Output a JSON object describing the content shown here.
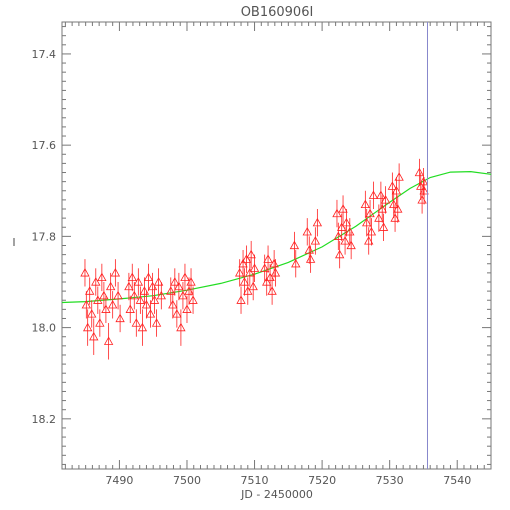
{
  "chart_data": {
    "type": "scatter",
    "title": "OB160906I",
    "xlabel": "JD - 2450000",
    "ylabel": "I",
    "xlim": [
      7481.5,
      7545.0
    ],
    "ylim": [
      18.31,
      17.33
    ],
    "y_inverted": true,
    "x_ticks": [
      7490,
      7500,
      7510,
      7520,
      7530,
      7540
    ],
    "x_tick_labels": [
      "7490",
      "7500",
      "7510",
      "7520",
      "7530",
      "7540"
    ],
    "y_ticks": [
      17.4,
      17.6,
      17.8,
      18.0,
      18.2
    ],
    "y_tick_labels": [
      "17.4",
      "17.6",
      "17.8",
      "18.0",
      "18.2"
    ],
    "grid": false,
    "vertical_marker_x": 7535.6,
    "colors": {
      "points": "#ff2020",
      "model": "#22dd22",
      "marker": "#8888cc",
      "axes": "#777777"
    },
    "series": [
      {
        "kind": "observations",
        "marker": "open-triangle",
        "points": [
          {
            "x": 7484.9,
            "y": 17.88,
            "err": 0.03
          },
          {
            "x": 7485.1,
            "y": 17.95,
            "err": 0.03
          },
          {
            "x": 7485.3,
            "y": 18.0,
            "err": 0.04
          },
          {
            "x": 7485.6,
            "y": 17.92,
            "err": 0.03
          },
          {
            "x": 7485.9,
            "y": 17.97,
            "err": 0.03
          },
          {
            "x": 7486.2,
            "y": 18.02,
            "err": 0.04
          },
          {
            "x": 7486.5,
            "y": 17.9,
            "err": 0.03
          },
          {
            "x": 7486.8,
            "y": 17.94,
            "err": 0.03
          },
          {
            "x": 7487.1,
            "y": 17.99,
            "err": 0.03
          },
          {
            "x": 7487.4,
            "y": 17.89,
            "err": 0.03
          },
          {
            "x": 7487.7,
            "y": 17.93,
            "err": 0.03
          },
          {
            "x": 7488.0,
            "y": 17.96,
            "err": 0.03
          },
          {
            "x": 7488.4,
            "y": 18.03,
            "err": 0.04
          },
          {
            "x": 7488.7,
            "y": 17.91,
            "err": 0.03
          },
          {
            "x": 7489.0,
            "y": 17.95,
            "err": 0.03
          },
          {
            "x": 7489.4,
            "y": 17.88,
            "err": 0.03
          },
          {
            "x": 7489.8,
            "y": 17.93,
            "err": 0.03
          },
          {
            "x": 7490.1,
            "y": 17.98,
            "err": 0.03
          },
          {
            "x": 7491.4,
            "y": 17.91,
            "err": 0.03
          },
          {
            "x": 7491.6,
            "y": 17.96,
            "err": 0.03
          },
          {
            "x": 7491.9,
            "y": 17.89,
            "err": 0.03
          },
          {
            "x": 7492.2,
            "y": 17.93,
            "err": 0.03
          },
          {
            "x": 7492.5,
            "y": 17.99,
            "err": 0.03
          },
          {
            "x": 7492.8,
            "y": 17.9,
            "err": 0.03
          },
          {
            "x": 7493.1,
            "y": 17.94,
            "err": 0.03
          },
          {
            "x": 7493.4,
            "y": 18.0,
            "err": 0.04
          },
          {
            "x": 7493.7,
            "y": 17.92,
            "err": 0.03
          },
          {
            "x": 7494.0,
            "y": 17.95,
            "err": 0.03
          },
          {
            "x": 7494.3,
            "y": 17.89,
            "err": 0.03
          },
          {
            "x": 7494.6,
            "y": 17.97,
            "err": 0.03
          },
          {
            "x": 7494.9,
            "y": 17.91,
            "err": 0.03
          },
          {
            "x": 7495.2,
            "y": 17.94,
            "err": 0.03
          },
          {
            "x": 7495.5,
            "y": 17.99,
            "err": 0.03
          },
          {
            "x": 7495.8,
            "y": 17.9,
            "err": 0.03
          },
          {
            "x": 7496.2,
            "y": 17.93,
            "err": 0.03
          },
          {
            "x": 7497.6,
            "y": 17.92,
            "err": 0.03
          },
          {
            "x": 7497.9,
            "y": 17.95,
            "err": 0.03
          },
          {
            "x": 7498.2,
            "y": 17.9,
            "err": 0.03
          },
          {
            "x": 7498.5,
            "y": 17.97,
            "err": 0.03
          },
          {
            "x": 7498.8,
            "y": 17.91,
            "err": 0.03
          },
          {
            "x": 7499.1,
            "y": 18.0,
            "err": 0.04
          },
          {
            "x": 7499.4,
            "y": 17.93,
            "err": 0.03
          },
          {
            "x": 7499.7,
            "y": 17.89,
            "err": 0.03
          },
          {
            "x": 7500.0,
            "y": 17.96,
            "err": 0.03
          },
          {
            "x": 7500.3,
            "y": 17.92,
            "err": 0.03
          },
          {
            "x": 7500.6,
            "y": 17.9,
            "err": 0.03
          },
          {
            "x": 7500.9,
            "y": 17.94,
            "err": 0.03
          },
          {
            "x": 7507.8,
            "y": 17.88,
            "err": 0.03
          },
          {
            "x": 7508.0,
            "y": 17.94,
            "err": 0.03
          },
          {
            "x": 7508.3,
            "y": 17.86,
            "err": 0.03
          },
          {
            "x": 7508.5,
            "y": 17.9,
            "err": 0.03
          },
          {
            "x": 7508.8,
            "y": 17.85,
            "err": 0.03
          },
          {
            "x": 7509.0,
            "y": 17.92,
            "err": 0.03
          },
          {
            "x": 7509.3,
            "y": 17.88,
            "err": 0.03
          },
          {
            "x": 7509.5,
            "y": 17.84,
            "err": 0.03
          },
          {
            "x": 7509.8,
            "y": 17.91,
            "err": 0.03
          },
          {
            "x": 7510.0,
            "y": 17.87,
            "err": 0.03
          },
          {
            "x": 7511.5,
            "y": 17.87,
            "err": 0.03
          },
          {
            "x": 7511.8,
            "y": 17.9,
            "err": 0.03
          },
          {
            "x": 7512.0,
            "y": 17.85,
            "err": 0.03
          },
          {
            "x": 7512.3,
            "y": 17.89,
            "err": 0.03
          },
          {
            "x": 7512.6,
            "y": 17.92,
            "err": 0.03
          },
          {
            "x": 7512.9,
            "y": 17.86,
            "err": 0.03
          },
          {
            "x": 7513.1,
            "y": 17.88,
            "err": 0.03
          },
          {
            "x": 7515.9,
            "y": 17.82,
            "err": 0.03
          },
          {
            "x": 7516.1,
            "y": 17.86,
            "err": 0.03
          },
          {
            "x": 7517.8,
            "y": 17.79,
            "err": 0.03
          },
          {
            "x": 7518.1,
            "y": 17.83,
            "err": 0.03
          },
          {
            "x": 7518.3,
            "y": 17.85,
            "err": 0.03
          },
          {
            "x": 7519.0,
            "y": 17.81,
            "err": 0.03
          },
          {
            "x": 7519.3,
            "y": 17.77,
            "err": 0.03
          },
          {
            "x": 7522.2,
            "y": 17.75,
            "err": 0.03
          },
          {
            "x": 7522.4,
            "y": 17.8,
            "err": 0.03
          },
          {
            "x": 7522.6,
            "y": 17.84,
            "err": 0.03
          },
          {
            "x": 7522.9,
            "y": 17.78,
            "err": 0.03
          },
          {
            "x": 7523.1,
            "y": 17.74,
            "err": 0.03
          },
          {
            "x": 7523.4,
            "y": 17.81,
            "err": 0.03
          },
          {
            "x": 7523.6,
            "y": 17.77,
            "err": 0.03
          },
          {
            "x": 7524.1,
            "y": 17.79,
            "err": 0.03
          },
          {
            "x": 7524.3,
            "y": 17.82,
            "err": 0.03
          },
          {
            "x": 7526.4,
            "y": 17.73,
            "err": 0.03
          },
          {
            "x": 7526.6,
            "y": 17.77,
            "err": 0.03
          },
          {
            "x": 7526.9,
            "y": 17.81,
            "err": 0.03
          },
          {
            "x": 7527.1,
            "y": 17.75,
            "err": 0.03
          },
          {
            "x": 7527.3,
            "y": 17.79,
            "err": 0.03
          },
          {
            "x": 7527.6,
            "y": 17.71,
            "err": 0.03
          },
          {
            "x": 7528.4,
            "y": 17.76,
            "err": 0.03
          },
          {
            "x": 7528.7,
            "y": 17.71,
            "err": 0.03
          },
          {
            "x": 7528.9,
            "y": 17.74,
            "err": 0.03
          },
          {
            "x": 7529.1,
            "y": 17.78,
            "err": 0.03
          },
          {
            "x": 7529.4,
            "y": 17.72,
            "err": 0.03
          },
          {
            "x": 7530.4,
            "y": 17.69,
            "err": 0.03
          },
          {
            "x": 7530.6,
            "y": 17.73,
            "err": 0.03
          },
          {
            "x": 7530.8,
            "y": 17.76,
            "err": 0.03
          },
          {
            "x": 7531.0,
            "y": 17.7,
            "err": 0.03
          },
          {
            "x": 7531.2,
            "y": 17.74,
            "err": 0.03
          },
          {
            "x": 7531.4,
            "y": 17.67,
            "err": 0.03
          },
          {
            "x": 7534.4,
            "y": 17.66,
            "err": 0.03
          },
          {
            "x": 7534.6,
            "y": 17.69,
            "err": 0.03
          },
          {
            "x": 7534.8,
            "y": 17.72,
            "err": 0.03
          },
          {
            "x": 7535.0,
            "y": 17.68,
            "err": 0.03
          },
          {
            "x": 7535.1,
            "y": 17.7,
            "err": 0.03
          }
        ]
      },
      {
        "kind": "model",
        "line": true,
        "points": [
          {
            "x": 7481.5,
            "y": 17.945
          },
          {
            "x": 7485.0,
            "y": 17.943
          },
          {
            "x": 7490.0,
            "y": 17.937
          },
          {
            "x": 7495.0,
            "y": 17.93
          },
          {
            "x": 7500.0,
            "y": 17.918
          },
          {
            "x": 7505.0,
            "y": 17.903
          },
          {
            "x": 7510.0,
            "y": 17.883
          },
          {
            "x": 7515.0,
            "y": 17.857
          },
          {
            "x": 7520.0,
            "y": 17.823
          },
          {
            "x": 7525.0,
            "y": 17.778
          },
          {
            "x": 7530.0,
            "y": 17.725
          },
          {
            "x": 7533.0,
            "y": 17.695
          },
          {
            "x": 7536.0,
            "y": 17.671
          },
          {
            "x": 7539.0,
            "y": 17.659
          },
          {
            "x": 7542.0,
            "y": 17.658
          },
          {
            "x": 7545.0,
            "y": 17.664
          }
        ]
      }
    ]
  }
}
